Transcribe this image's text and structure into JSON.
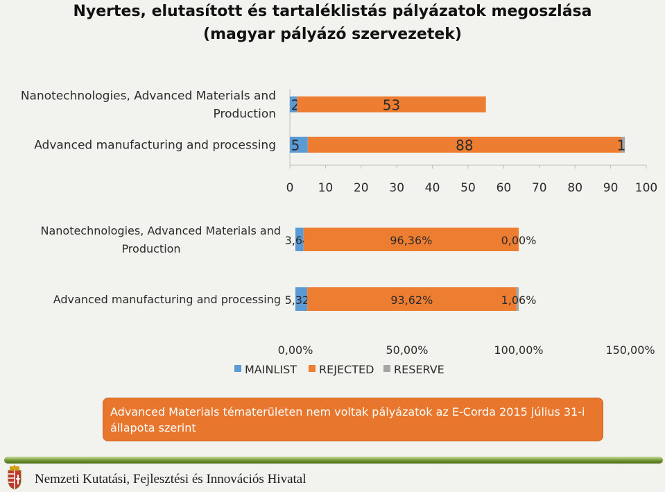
{
  "title": {
    "line1": "Nyertes, elutasított és tartaléklistás pályázatok megoszlása",
    "line2": "(magyar pályázó szervezetek)"
  },
  "legend": [
    "MAINLIST",
    "REJECTED",
    "RESERVE"
  ],
  "colors": {
    "MAINLIST": "#5b9bd5",
    "REJECTED": "#ed7d31",
    "RESERVE": "#a5a5a5"
  },
  "chart_data": [
    {
      "type": "bar",
      "orientation": "horizontal",
      "stacked": true,
      "categories": [
        "Nanotechnologies, Advanced Materials and Production",
        "Advanced manufacturing and processing"
      ],
      "series": [
        {
          "name": "MAINLIST",
          "values": [
            2,
            5
          ],
          "labels": [
            "2",
            "5"
          ]
        },
        {
          "name": "REJECTED",
          "values": [
            53,
            88
          ],
          "labels": [
            "53",
            "88"
          ]
        },
        {
          "name": "RESERVE",
          "values": [
            0,
            1
          ],
          "labels": [
            "",
            "1"
          ]
        }
      ],
      "xlim": [
        0,
        100
      ],
      "xticks": [
        "0",
        "10",
        "20",
        "30",
        "40",
        "50",
        "60",
        "70",
        "80",
        "90",
        "100"
      ]
    },
    {
      "type": "bar",
      "orientation": "horizontal",
      "stacked": true,
      "categories": [
        "Nanotechnologies, Advanced Materials and Production",
        "Advanced manufacturing and processing"
      ],
      "series": [
        {
          "name": "MAINLIST",
          "values": [
            3.64,
            5.32
          ],
          "labels": [
            "3,64%",
            "5,32%"
          ]
        },
        {
          "name": "REJECTED",
          "values": [
            96.36,
            93.62
          ],
          "labels": [
            "96,36%",
            "93,62%"
          ]
        },
        {
          "name": "RESERVE",
          "values": [
            0.0,
            1.06
          ],
          "labels": [
            "0,00%",
            "1,06%"
          ]
        }
      ],
      "xlim": [
        0,
        150
      ],
      "xticks": [
        "0,00%",
        "50,00%",
        "100,00%",
        "150,00%"
      ],
      "legend": "bottom"
    }
  ],
  "chart1_category_lines": [
    [
      "Nanotechnologies, Advanced Materials and",
      "Production"
    ],
    [
      "Advanced manufacturing and processing"
    ]
  ],
  "chart2_category_lines": [
    [
      "Nanotechnologies, Advanced Materials and",
      "Production"
    ],
    [
      "Advanced manufacturing and processing"
    ]
  ],
  "note": "Advanced Materials tématerületen nem voltak pályázatok az E-Corda 2015 július 31-i állapota szerint",
  "footer": "Nemzeti Kutatási, Fejlesztési és Innovációs Hivatal",
  "crest_icon": "hungarian-coat-of-arms-icon"
}
